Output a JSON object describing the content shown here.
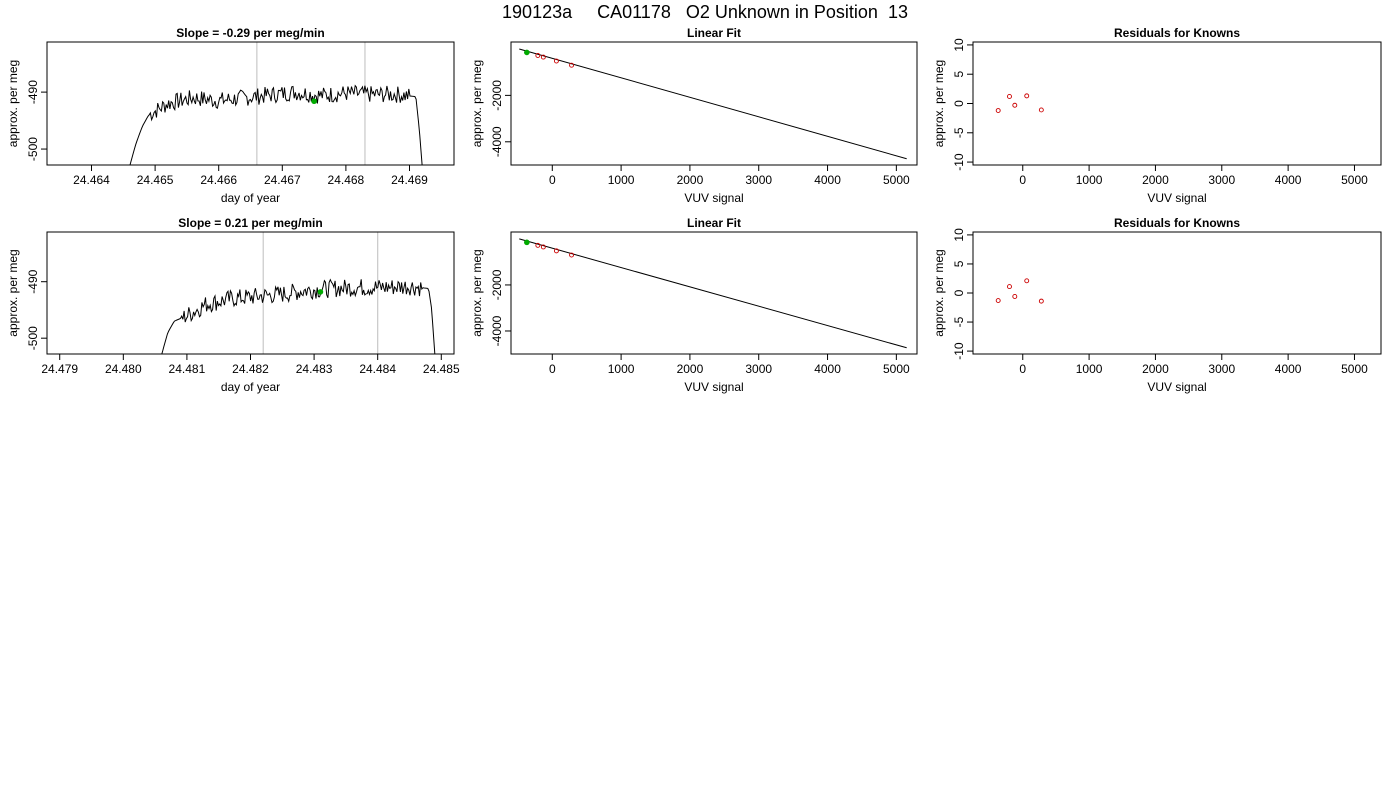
{
  "page": {
    "title": "190123a     CA01178   O2 Unknown in Position  13"
  },
  "colors": {
    "line": "#000000",
    "known_points": "#cc0000",
    "unknown_point": "#00aa00",
    "vertical_guides": "#c8c8c8"
  },
  "chart_data": [
    {
      "type": "line",
      "title": "Slope =  -0.29  per meg/min",
      "xlabel": "day of year",
      "ylabel": "approx. per meg",
      "xlim": [
        24.4633,
        24.4697
      ],
      "ylim": [
        -502.8,
        -481.2
      ],
      "xticks": [
        24.464,
        24.465,
        24.466,
        24.467,
        24.468,
        24.469
      ],
      "xtick_labels": [
        "24.464",
        "24.465",
        "24.466",
        "24.467",
        "24.468",
        "24.469"
      ],
      "yticks": [
        -500,
        -490
      ],
      "ytick_labels": [
        "-500",
        "-490"
      ],
      "vlines": [
        24.4666,
        24.4683
      ],
      "x_start": 24.4646,
      "x_end": 24.4692,
      "n_points": 240,
      "trace": [
        [
          24.4646,
          -503
        ],
        [
          24.4647,
          -499
        ],
        [
          24.4648,
          -496
        ],
        [
          24.4649,
          -494
        ],
        [
          24.4652,
          -492
        ],
        [
          24.4656,
          -491
        ],
        [
          24.466,
          -491.5
        ],
        [
          24.4664,
          -491
        ],
        [
          24.4668,
          -490.5
        ],
        [
          24.4672,
          -490
        ],
        [
          24.4676,
          -490.6
        ],
        [
          24.468,
          -490.2
        ],
        [
          24.4684,
          -490.4
        ],
        [
          24.4688,
          -490.4
        ],
        [
          24.4691,
          -490.8
        ],
        [
          24.46915,
          -496
        ],
        [
          24.4692,
          -503
        ]
      ],
      "noise_amp": 1.5,
      "series": [
        {
          "kind": "marker",
          "color_key": "unknown_point",
          "points": [
            [
              24.4675,
              -491.6
            ]
          ]
        }
      ]
    },
    {
      "type": "line",
      "title": "Linear Fit",
      "xlabel": "VUV signal",
      "ylabel": "approx. per meg",
      "xlim": [
        -600,
        5300
      ],
      "ylim": [
        -5000,
        300
      ],
      "xticks": [
        0,
        1000,
        2000,
        3000,
        4000,
        5000
      ],
      "xtick_labels": [
        "0",
        "1000",
        "2000",
        "3000",
        "4000",
        "5000"
      ],
      "yticks": [
        -4000,
        -2000
      ],
      "ytick_labels": [
        "-4000",
        "-2000"
      ],
      "fit_line": [
        [
          -480,
          0
        ],
        [
          5150,
          -4730
        ]
      ],
      "series": [
        {
          "kind": "points",
          "color_key": "known_points",
          "points": [
            [
              -370,
              -150
            ],
            [
              -210,
              -280
            ],
            [
              -130,
              -350
            ],
            [
              60,
              -520
            ],
            [
              280,
              -700
            ]
          ]
        },
        {
          "kind": "marker",
          "color_key": "unknown_point",
          "points": [
            [
              -370,
              -150
            ]
          ]
        }
      ]
    },
    {
      "type": "scatter",
      "title": "Residuals for Knowns",
      "xlabel": "VUV signal",
      "ylabel": "approx. per meg",
      "xlim": [
        -750,
        5400
      ],
      "ylim": [
        -10.5,
        10.5
      ],
      "xticks": [
        0,
        1000,
        2000,
        3000,
        4000,
        5000
      ],
      "xtick_labels": [
        "0",
        "1000",
        "2000",
        "3000",
        "4000",
        "5000"
      ],
      "yticks": [
        -10,
        -5,
        0,
        5,
        10
      ],
      "ytick_labels": [
        "-10",
        "-5",
        "0",
        "5",
        "10"
      ],
      "series": [
        {
          "kind": "points",
          "color_key": "known_points",
          "points": [
            [
              -370,
              -1.2
            ],
            [
              -200,
              1.2
            ],
            [
              -120,
              -0.3
            ],
            [
              60,
              1.3
            ],
            [
              280,
              -1.1
            ]
          ]
        }
      ]
    },
    {
      "type": "line",
      "title": "Slope =  0.21  per meg/min",
      "xlabel": "day of year",
      "ylabel": "approx. per meg",
      "xlim": [
        24.4788,
        24.4852
      ],
      "ylim": [
        -502.8,
        -481.2
      ],
      "xticks": [
        24.479,
        24.48,
        24.481,
        24.482,
        24.483,
        24.484,
        24.485
      ],
      "xtick_labels": [
        "24.479",
        "24.480",
        "24.481",
        "24.482",
        "24.483",
        "24.484",
        "24.485"
      ],
      "yticks": [
        -500,
        -490
      ],
      "ytick_labels": [
        "-500",
        "-490"
      ],
      "vlines": [
        24.4822,
        24.484
      ],
      "x_start": 24.4806,
      "x_end": 24.4849,
      "n_points": 230,
      "trace": [
        [
          24.4806,
          -503
        ],
        [
          24.4807,
          -499
        ],
        [
          24.4808,
          -497
        ],
        [
          24.481,
          -496
        ],
        [
          24.4813,
          -494
        ],
        [
          24.4817,
          -493
        ],
        [
          24.4821,
          -492.6
        ],
        [
          24.4825,
          -492.2
        ],
        [
          24.4829,
          -491.5
        ],
        [
          24.4833,
          -491.2
        ],
        [
          24.4837,
          -491
        ],
        [
          24.4841,
          -491
        ],
        [
          24.4845,
          -490.8
        ],
        [
          24.4848,
          -491.2
        ],
        [
          24.48485,
          -495
        ],
        [
          24.4849,
          -503
        ]
      ],
      "noise_amp": 1.6,
      "series": [
        {
          "kind": "marker",
          "color_key": "unknown_point",
          "points": [
            [
              24.4831,
              -491.8
            ]
          ]
        }
      ]
    },
    {
      "type": "line",
      "title": "Linear Fit",
      "xlabel": "VUV signal",
      "ylabel": "approx. per meg",
      "xlim": [
        -600,
        5300
      ],
      "ylim": [
        -5000,
        300
      ],
      "xticks": [
        0,
        1000,
        2000,
        3000,
        4000,
        5000
      ],
      "xtick_labels": [
        "0",
        "1000",
        "2000",
        "3000",
        "4000",
        "5000"
      ],
      "yticks": [
        -4000,
        -2000
      ],
      "ytick_labels": [
        "-4000",
        "-2000"
      ],
      "fit_line": [
        [
          -480,
          0
        ],
        [
          5150,
          -4730
        ]
      ],
      "series": [
        {
          "kind": "points",
          "color_key": "known_points",
          "points": [
            [
              -370,
              -150
            ],
            [
              -210,
              -280
            ],
            [
              -130,
              -350
            ],
            [
              60,
              -520
            ],
            [
              280,
              -700
            ]
          ]
        },
        {
          "kind": "marker",
          "color_key": "unknown_point",
          "points": [
            [
              -370,
              -150
            ]
          ]
        }
      ]
    },
    {
      "type": "scatter",
      "title": "Residuals for Knowns",
      "xlabel": "VUV signal",
      "ylabel": "approx. per meg",
      "xlim": [
        -750,
        5400
      ],
      "ylim": [
        -10.5,
        10.5
      ],
      "xticks": [
        0,
        1000,
        2000,
        3000,
        4000,
        5000
      ],
      "xtick_labels": [
        "0",
        "1000",
        "2000",
        "3000",
        "4000",
        "5000"
      ],
      "yticks": [
        -10,
        -5,
        0,
        5,
        10
      ],
      "ytick_labels": [
        "-10",
        "-5",
        "0",
        "5",
        "10"
      ],
      "series": [
        {
          "kind": "points",
          "color_key": "known_points",
          "points": [
            [
              -370,
              -1.3
            ],
            [
              -200,
              1.1
            ],
            [
              -120,
              -0.6
            ],
            [
              60,
              2.1
            ],
            [
              280,
              -1.4
            ]
          ]
        }
      ]
    }
  ]
}
